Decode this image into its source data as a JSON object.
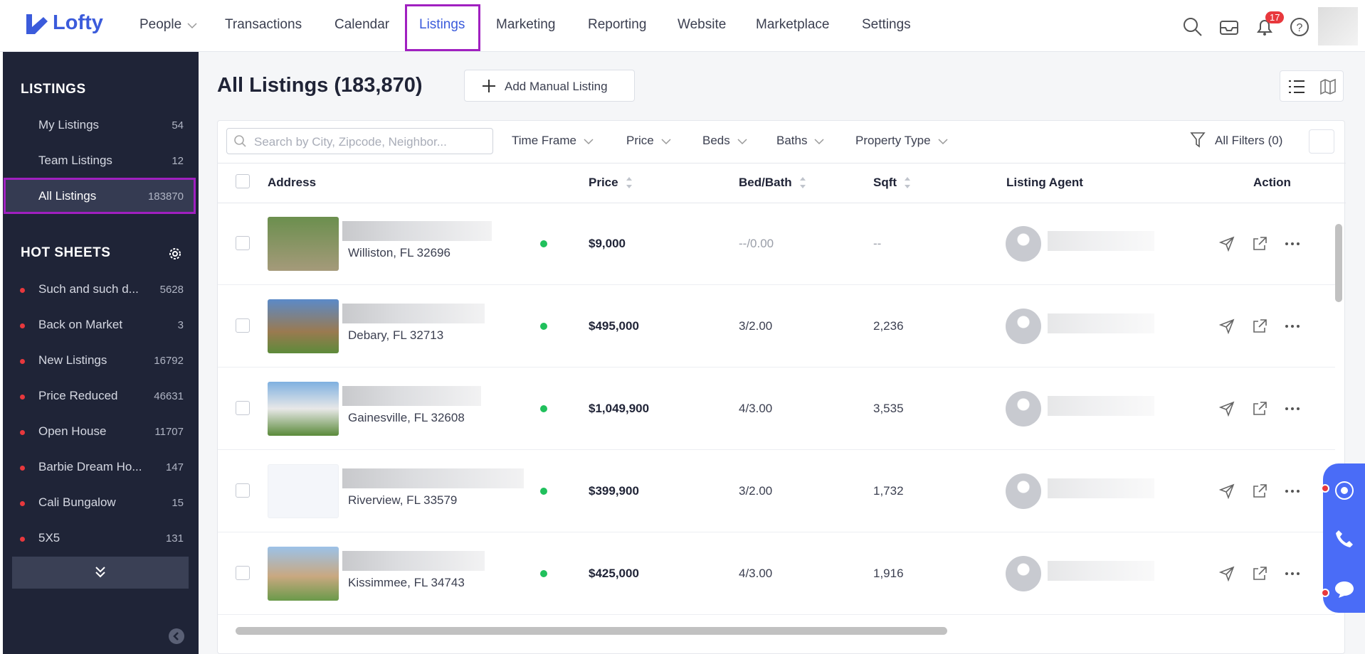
{
  "nav": {
    "brand": "Lofty",
    "items": [
      "People",
      "Transactions",
      "Calendar",
      "Listings",
      "Marketing",
      "Reporting",
      "Website",
      "Marketplace",
      "Settings"
    ],
    "badge": "17"
  },
  "sidebar": {
    "listings_title": "LISTINGS",
    "listings": [
      {
        "name": "My Listings",
        "count": 54
      },
      {
        "name": "Team Listings",
        "count": 12
      },
      {
        "name": "All Listings",
        "count": 183870
      }
    ],
    "hot_title": "HOT SHEETS",
    "hot": [
      {
        "name": "Such and such d...",
        "count": 5628
      },
      {
        "name": "Back on Market",
        "count": 3
      },
      {
        "name": "New Listings",
        "count": 16792
      },
      {
        "name": "Price Reduced",
        "count": 46631
      },
      {
        "name": "Open House",
        "count": 11707
      },
      {
        "name": "Barbie Dream Ho...",
        "count": 147
      },
      {
        "name": "Cali Bungalow",
        "count": 15
      },
      {
        "name": "5X5",
        "count": 131
      }
    ]
  },
  "main": {
    "title": "All Listings (183,870)",
    "add_button": "Add Manual Listing",
    "search_placeholder": "Search by City, Zipcode, Neighbor...",
    "filters": [
      "Time Frame",
      "Price",
      "Beds",
      "Baths",
      "Property Type"
    ],
    "all_filters": "All Filters (0)",
    "columns": [
      "Address",
      "Price",
      "Bed/Bath",
      "Sqft",
      "Listing Agent",
      "Action"
    ],
    "rows": [
      {
        "city": "Williston, FL 32696",
        "price": "$9,000",
        "bedbath": "--/0.00",
        "sqft": "--"
      },
      {
        "city": "Debary, FL 32713",
        "price": "$495,000",
        "bedbath": "3/2.00",
        "sqft": "2,236"
      },
      {
        "city": "Gainesville, FL 32608",
        "price": "$1,049,900",
        "bedbath": "4/3.00",
        "sqft": "3,535"
      },
      {
        "city": "Riverview, FL 33579",
        "price": "$399,900",
        "bedbath": "3/2.00",
        "sqft": "1,732"
      },
      {
        "city": "Kissimmee, FL 34743",
        "price": "$425,000",
        "bedbath": "4/3.00",
        "sqft": "1,916"
      }
    ]
  }
}
